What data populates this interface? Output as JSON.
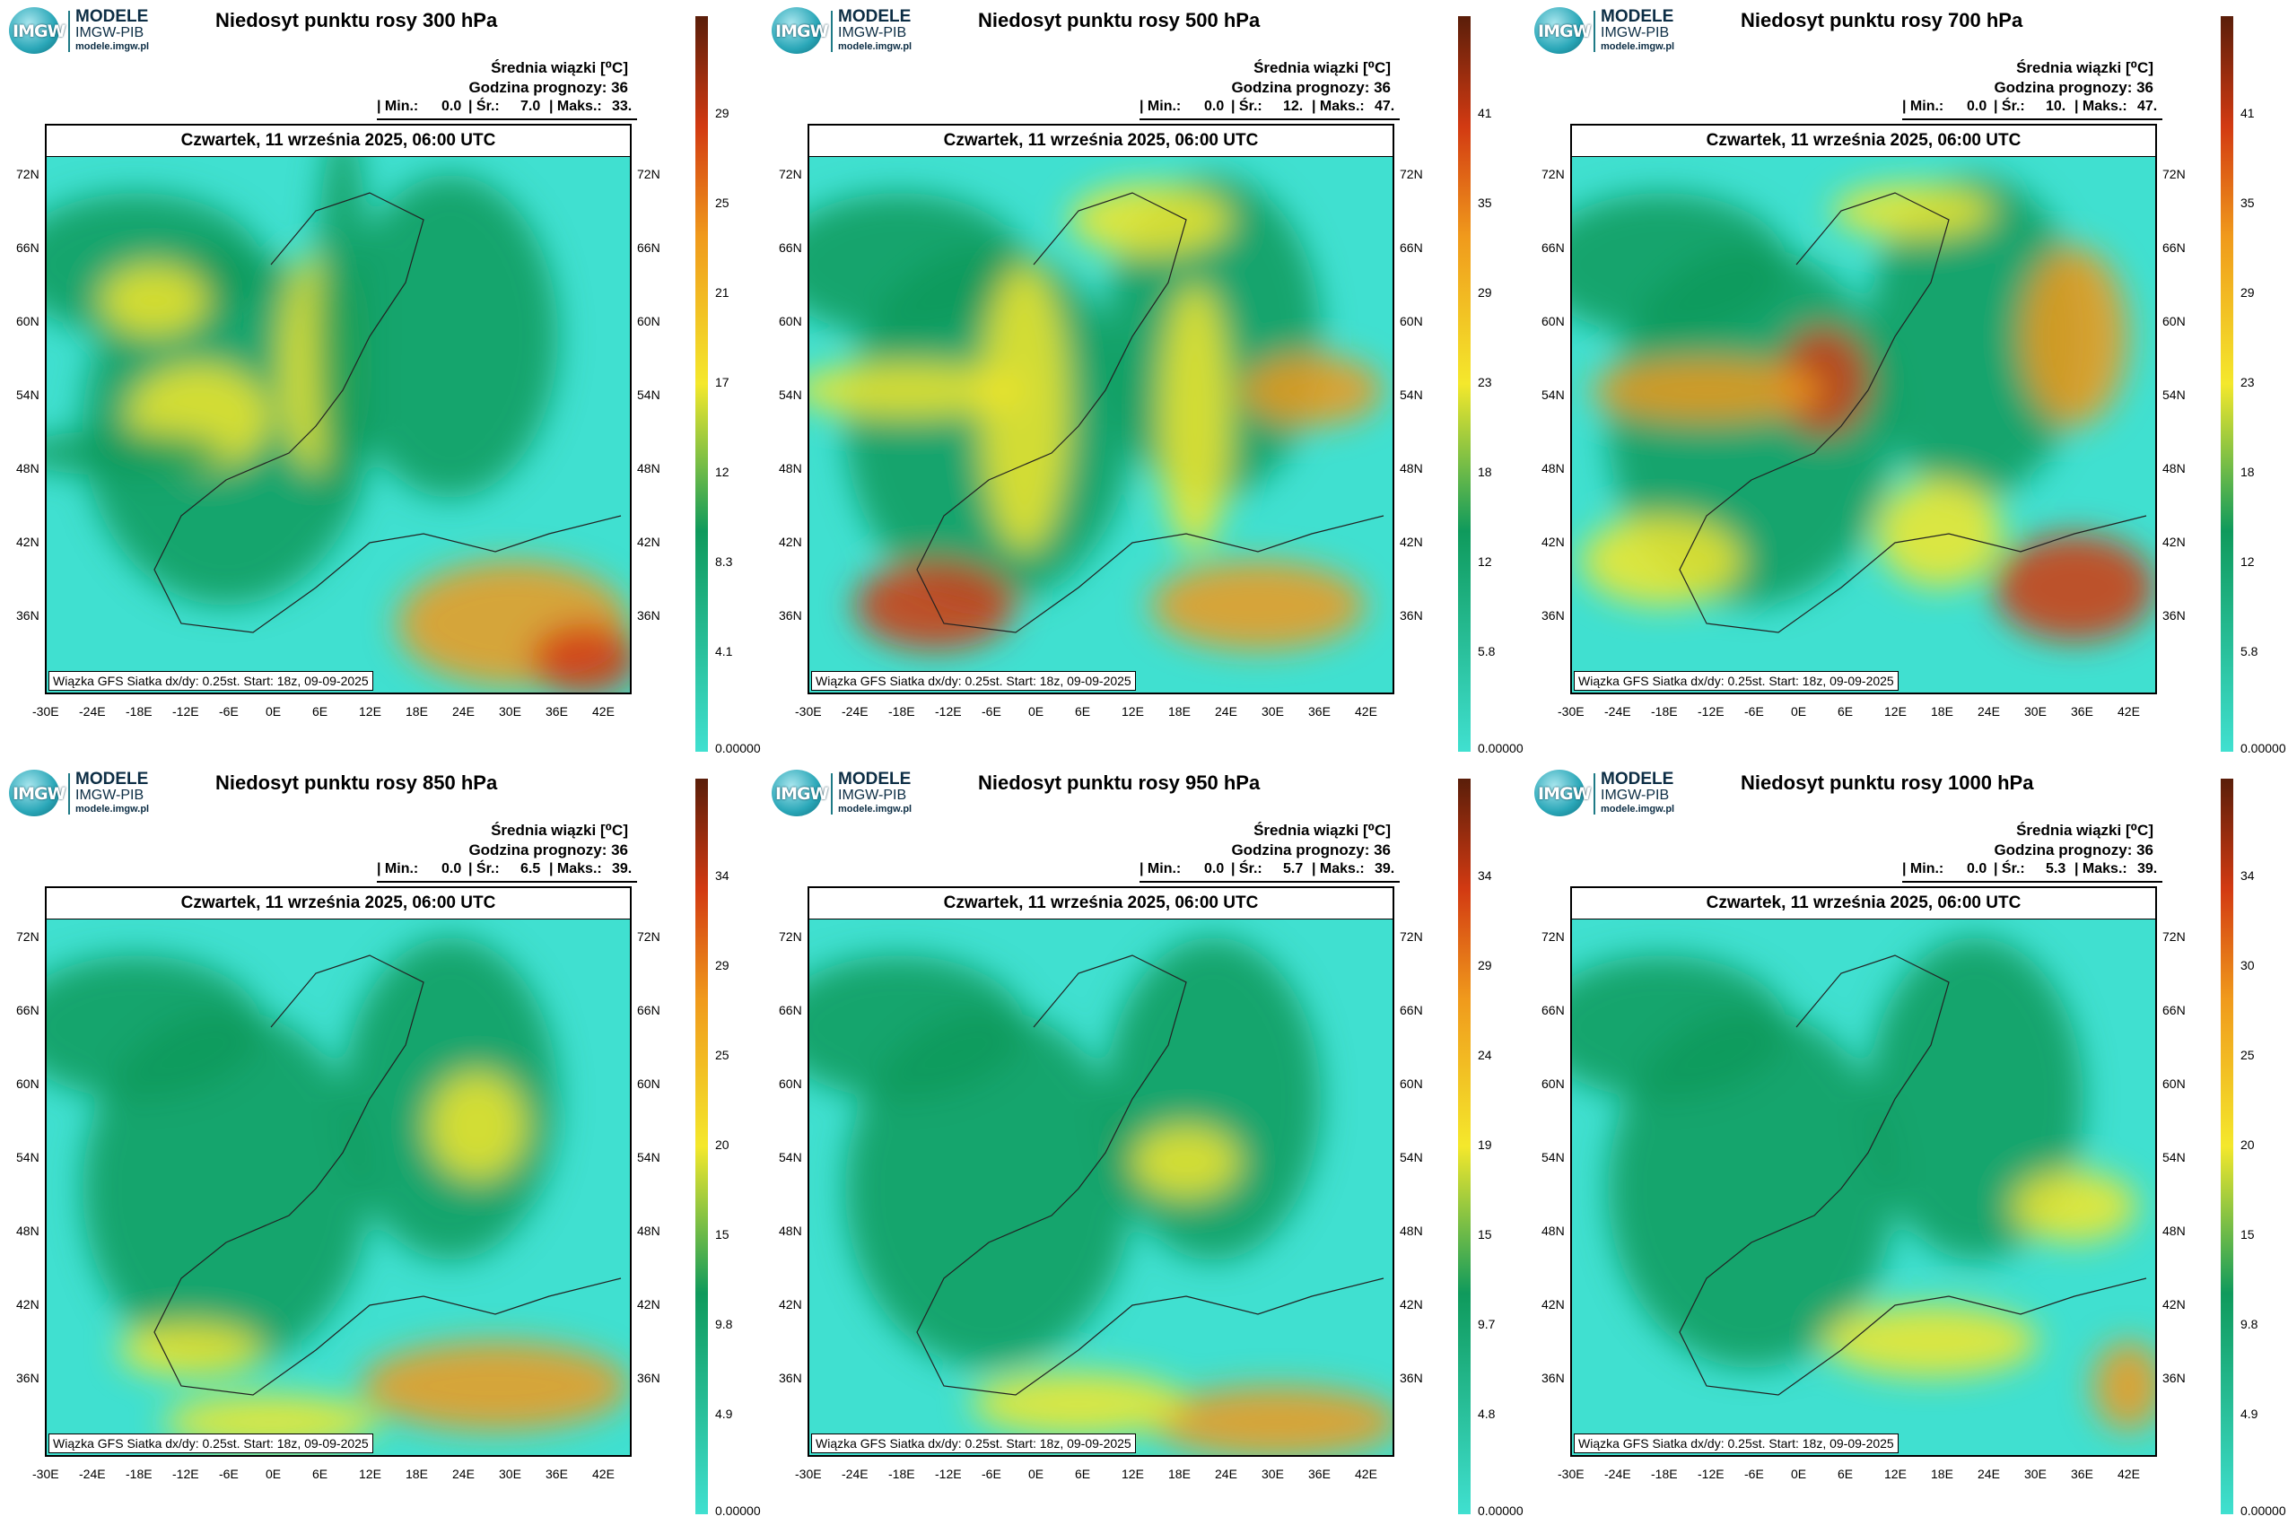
{
  "logo": {
    "badge": "IMGW",
    "line1": "MODELE",
    "line2": "IMGW-PIB",
    "line3": "modele.imgw.pl"
  },
  "info": {
    "mean_label": "Średnia wiązki [⁰C]",
    "forecast_hour": "Godzina prognozy: 36",
    "min_label": "| Min.:",
    "mean_short": "| Śr.:",
    "max_label": "| Maks.:"
  },
  "date_header": "Czwartek, 11 września 2025, 06:00 UTC",
  "footer": "Wiązka GFS Siatka dx/dy: 0.25st. Start: 18z, 09-09-2025",
  "lon_ticks": [
    "-30E",
    "-24E",
    "-18E",
    "-12E",
    "-6E",
    "0E",
    "6E",
    "12E",
    "18E",
    "24E",
    "30E",
    "36E",
    "42E"
  ],
  "lat_ticks_left": [
    "72N",
    "66N",
    "60N",
    "54N",
    "48N",
    "42N",
    "36N"
  ],
  "colors": {
    "cyan": "#40e0d0",
    "green": "#0f9a5c",
    "yellow": "#f4e82c",
    "orange": "#f09a1c",
    "red": "#d23a12",
    "dark": "#5a1e0a"
  },
  "panels": [
    {
      "title": "Niedosyt punktu rosy 300 hPa",
      "min": "0.0",
      "mean": "7.0",
      "max": "33.",
      "colorbar": [
        "29",
        "25",
        "21",
        "17",
        "12",
        "8.3",
        "4.1",
        "0.00000"
      ]
    },
    {
      "title": "Niedosyt punktu rosy 500 hPa",
      "min": "0.0",
      "mean": "12.",
      "max": "47.",
      "colorbar": [
        "41",
        "35",
        "29",
        "23",
        "18",
        "12",
        "5.8",
        "0.00000"
      ]
    },
    {
      "title": "Niedosyt punktu rosy 700 hPa",
      "min": "0.0",
      "mean": "10.",
      "max": "47.",
      "colorbar": [
        "41",
        "35",
        "29",
        "23",
        "18",
        "12",
        "5.8",
        "0.00000"
      ]
    },
    {
      "title": "Niedosyt punktu rosy 850 hPa",
      "min": "0.0",
      "mean": "6.5",
      "max": "39.",
      "colorbar": [
        "34",
        "29",
        "25",
        "20",
        "15",
        "9.8",
        "4.9",
        "0.00000"
      ]
    },
    {
      "title": "Niedosyt punktu rosy 950 hPa",
      "min": "0.0",
      "mean": "5.7",
      "max": "39.",
      "colorbar": [
        "34",
        "29",
        "24",
        "19",
        "15",
        "9.7",
        "4.8",
        "0.00000"
      ]
    },
    {
      "title": "Niedosyt punktu rosy 1000 hPa",
      "min": "0.0",
      "mean": "5.3",
      "max": "39.",
      "colorbar": [
        "34",
        "30",
        "25",
        "20",
        "15",
        "9.8",
        "4.9",
        "0.00000"
      ]
    }
  ]
}
